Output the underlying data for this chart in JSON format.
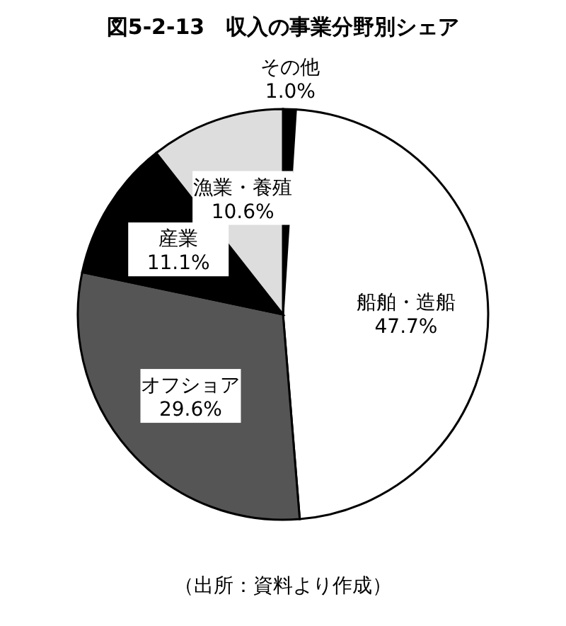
{
  "chart_data": {
    "type": "pie",
    "title": "図5-2-13　収入の事業分野別シェア",
    "categories": [
      "その他",
      "船舶・造船",
      "オフショア",
      "産業",
      "漁業・養殖"
    ],
    "values": [
      1.0,
      47.7,
      29.6,
      11.1,
      10.6
    ],
    "value_labels": [
      "1.0%",
      "47.7%",
      "29.6%",
      "11.1%",
      "10.6%"
    ],
    "colors": [
      "#000000",
      "#ffffff",
      "#555555",
      "#000000",
      "#dddddd"
    ],
    "annotations": [
      "（出所：資料より作成）"
    ]
  }
}
